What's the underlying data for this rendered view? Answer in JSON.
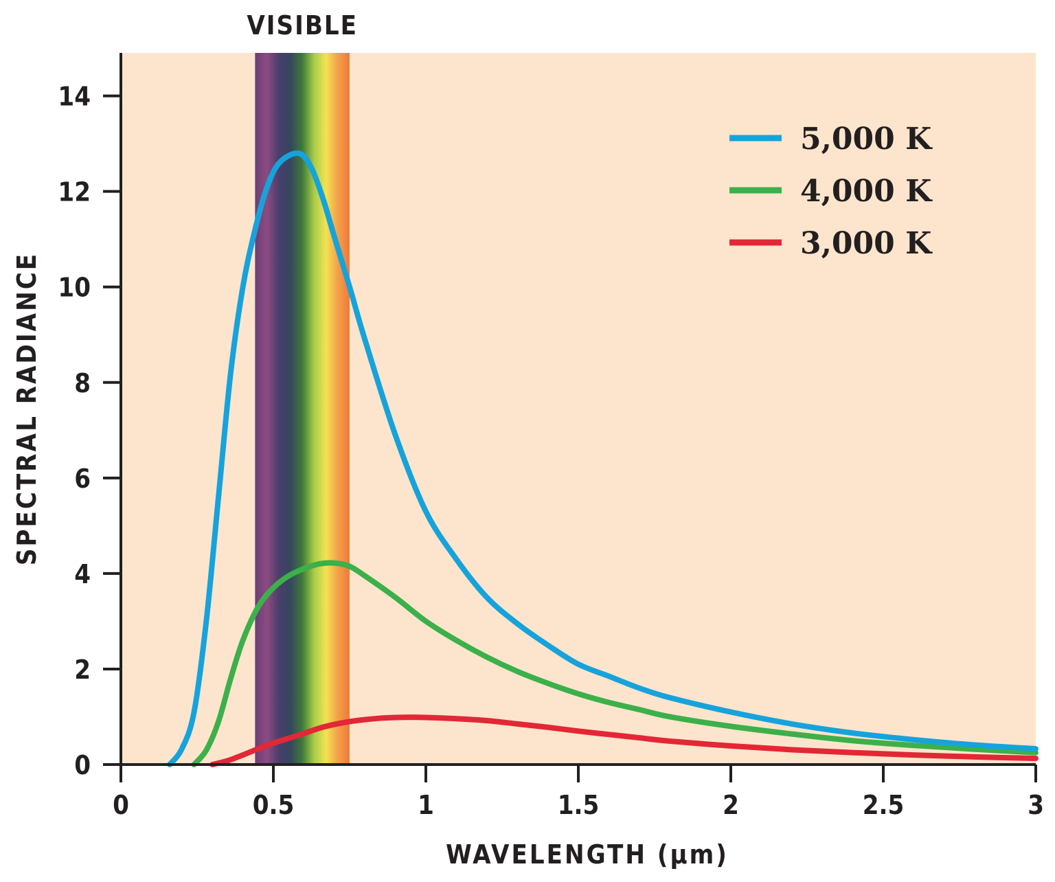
{
  "chart_data": {
    "type": "line",
    "title": "",
    "xlabel": "WAVELENGTH (µm)",
    "ylabel": "SPECTRAL RADIANCE",
    "xlim": [
      0,
      3
    ],
    "ylim": [
      0,
      14.9
    ],
    "x_ticks": [
      0,
      0.5,
      1,
      1.5,
      2,
      2.5,
      3
    ],
    "x_tick_labels": [
      "0",
      "0.5",
      "1",
      "1.5",
      "2",
      "2.5",
      "3"
    ],
    "y_ticks": [
      0,
      2,
      4,
      6,
      8,
      10,
      12,
      14
    ],
    "y_tick_labels": [
      "0",
      "2",
      "4",
      "6",
      "8",
      "10",
      "12",
      "14"
    ],
    "grid": false,
    "legend_position": "top-right",
    "background_color": "#fde5cd",
    "visible_band": {
      "label": "VISIBLE",
      "x_range": [
        0.44,
        0.75
      ],
      "colors": [
        "#6c3d77",
        "#8c4b82",
        "#4a3f6b",
        "#35465e",
        "#3e7a3a",
        "#a9cc48",
        "#f2e352",
        "#f3a04a",
        "#f07a38"
      ]
    },
    "series": [
      {
        "name": "5,000 K",
        "color": "#16a3dc",
        "points": [
          [
            0.16,
            0
          ],
          [
            0.2,
            0.33
          ],
          [
            0.24,
            1.1
          ],
          [
            0.28,
            3.0
          ],
          [
            0.32,
            5.6
          ],
          [
            0.36,
            8.2
          ],
          [
            0.4,
            10.0
          ],
          [
            0.44,
            11.2
          ],
          [
            0.48,
            12.1
          ],
          [
            0.52,
            12.6
          ],
          [
            0.58,
            12.8
          ],
          [
            0.62,
            12.55
          ],
          [
            0.66,
            11.9
          ],
          [
            0.7,
            11.05
          ],
          [
            0.75,
            10.0
          ],
          [
            0.8,
            8.9
          ],
          [
            0.9,
            6.9
          ],
          [
            1.0,
            5.3
          ],
          [
            1.1,
            4.3
          ],
          [
            1.2,
            3.5
          ],
          [
            1.3,
            2.95
          ],
          [
            1.4,
            2.5
          ],
          [
            1.5,
            2.1
          ],
          [
            1.6,
            1.85
          ],
          [
            1.7,
            1.6
          ],
          [
            1.8,
            1.4
          ],
          [
            2.0,
            1.1
          ],
          [
            2.2,
            0.85
          ],
          [
            2.4,
            0.66
          ],
          [
            2.6,
            0.52
          ],
          [
            2.8,
            0.41
          ],
          [
            3.0,
            0.33
          ]
        ]
      },
      {
        "name": "4,000 K",
        "color": "#3cb04a",
        "points": [
          [
            0.24,
            0
          ],
          [
            0.28,
            0.3
          ],
          [
            0.32,
            0.9
          ],
          [
            0.36,
            1.8
          ],
          [
            0.4,
            2.6
          ],
          [
            0.45,
            3.3
          ],
          [
            0.5,
            3.7
          ],
          [
            0.55,
            3.95
          ],
          [
            0.6,
            4.1
          ],
          [
            0.65,
            4.2
          ],
          [
            0.7,
            4.22
          ],
          [
            0.75,
            4.15
          ],
          [
            0.8,
            3.95
          ],
          [
            0.9,
            3.5
          ],
          [
            1.0,
            3.0
          ],
          [
            1.1,
            2.6
          ],
          [
            1.2,
            2.25
          ],
          [
            1.3,
            1.95
          ],
          [
            1.4,
            1.7
          ],
          [
            1.5,
            1.48
          ],
          [
            1.6,
            1.3
          ],
          [
            1.7,
            1.15
          ],
          [
            1.8,
            1.0
          ],
          [
            2.0,
            0.8
          ],
          [
            2.2,
            0.64
          ],
          [
            2.4,
            0.5
          ],
          [
            2.6,
            0.4
          ],
          [
            2.8,
            0.32
          ],
          [
            3.0,
            0.25
          ]
        ]
      },
      {
        "name": "3,000 K",
        "color": "#e32736",
        "points": [
          [
            0.3,
            0
          ],
          [
            0.35,
            0.08
          ],
          [
            0.4,
            0.2
          ],
          [
            0.45,
            0.33
          ],
          [
            0.5,
            0.45
          ],
          [
            0.55,
            0.55
          ],
          [
            0.6,
            0.65
          ],
          [
            0.65,
            0.76
          ],
          [
            0.7,
            0.84
          ],
          [
            0.75,
            0.9
          ],
          [
            0.8,
            0.94
          ],
          [
            0.85,
            0.97
          ],
          [
            0.9,
            0.985
          ],
          [
            0.95,
            0.99
          ],
          [
            1.0,
            0.985
          ],
          [
            1.1,
            0.96
          ],
          [
            1.2,
            0.92
          ],
          [
            1.3,
            0.85
          ],
          [
            1.4,
            0.78
          ],
          [
            1.5,
            0.7
          ],
          [
            1.6,
            0.63
          ],
          [
            1.7,
            0.56
          ],
          [
            1.8,
            0.49
          ],
          [
            2.0,
            0.39
          ],
          [
            2.2,
            0.31
          ],
          [
            2.4,
            0.25
          ],
          [
            2.6,
            0.2
          ],
          [
            2.8,
            0.16
          ],
          [
            3.0,
            0.13
          ]
        ]
      }
    ]
  }
}
